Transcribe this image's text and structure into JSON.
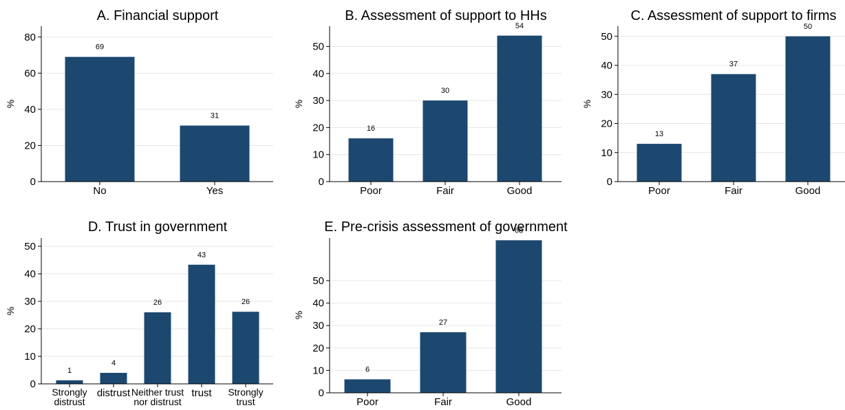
{
  "bar_color": "#1c4870",
  "grid_color": "#e6e6e6",
  "chart_data": [
    {
      "type": "bar",
      "title": "A. Financial support",
      "ylabel": "%",
      "xlabel": "",
      "categories": [
        [
          "No"
        ],
        [
          "Yes"
        ]
      ],
      "values": [
        69,
        31
      ],
      "value_labels": [
        "69",
        "31"
      ],
      "yticks": [
        0,
        20,
        40,
        60,
        80
      ],
      "ylim": [
        0,
        86
      ],
      "grid": true
    },
    {
      "type": "bar",
      "title": "B. Assessment of support to HHs",
      "ylabel": "%",
      "xlabel": "",
      "categories": [
        [
          "Poor"
        ],
        [
          "Fair"
        ],
        [
          "Good"
        ]
      ],
      "values": [
        16,
        30,
        54
      ],
      "value_labels": [
        "16",
        "30",
        "54"
      ],
      "yticks": [
        0,
        10,
        20,
        30,
        40,
        50
      ],
      "ylim": [
        0,
        57.5
      ],
      "grid": true
    },
    {
      "type": "bar",
      "title": "C. Assessment of support to firms",
      "ylabel": "%",
      "xlabel": "",
      "categories": [
        [
          "Poor"
        ],
        [
          "Fair"
        ],
        [
          "Good"
        ]
      ],
      "values": [
        13,
        37,
        50
      ],
      "value_labels": [
        "13",
        "37",
        "50"
      ],
      "yticks": [
        0,
        10,
        20,
        30,
        40,
        50
      ],
      "ylim": [
        0,
        53.5
      ],
      "grid": true
    },
    {
      "type": "bar",
      "title": "D. Trust in government",
      "ylabel": "%",
      "xlabel": "",
      "categories": [
        [
          "Strongly",
          "distrust"
        ],
        [
          "distrust"
        ],
        [
          "Neither trust",
          "nor distrust"
        ],
        [
          "trust"
        ],
        [
          "Strongly",
          "trust"
        ]
      ],
      "values": [
        1.3,
        4,
        26,
        43.3,
        26.2
      ],
      "value_labels": [
        "1",
        "4",
        "26",
        "43",
        "26"
      ],
      "yticks": [
        0,
        10,
        20,
        30,
        40,
        50
      ],
      "ylim": [
        0,
        53
      ],
      "grid": true
    },
    {
      "type": "bar",
      "title": "E. Pre-crisis assessment of government",
      "ylabel": "%",
      "xlabel": "",
      "categories": [
        [
          "Poor"
        ],
        [
          "Fair"
        ],
        [
          "Good"
        ]
      ],
      "values": [
        6,
        27,
        68
      ],
      "value_labels": [
        "6",
        "27",
        "68"
      ],
      "yticks": [
        0,
        10,
        20,
        30,
        40,
        50
      ],
      "ylim": [
        0,
        69
      ],
      "grid": true
    }
  ]
}
